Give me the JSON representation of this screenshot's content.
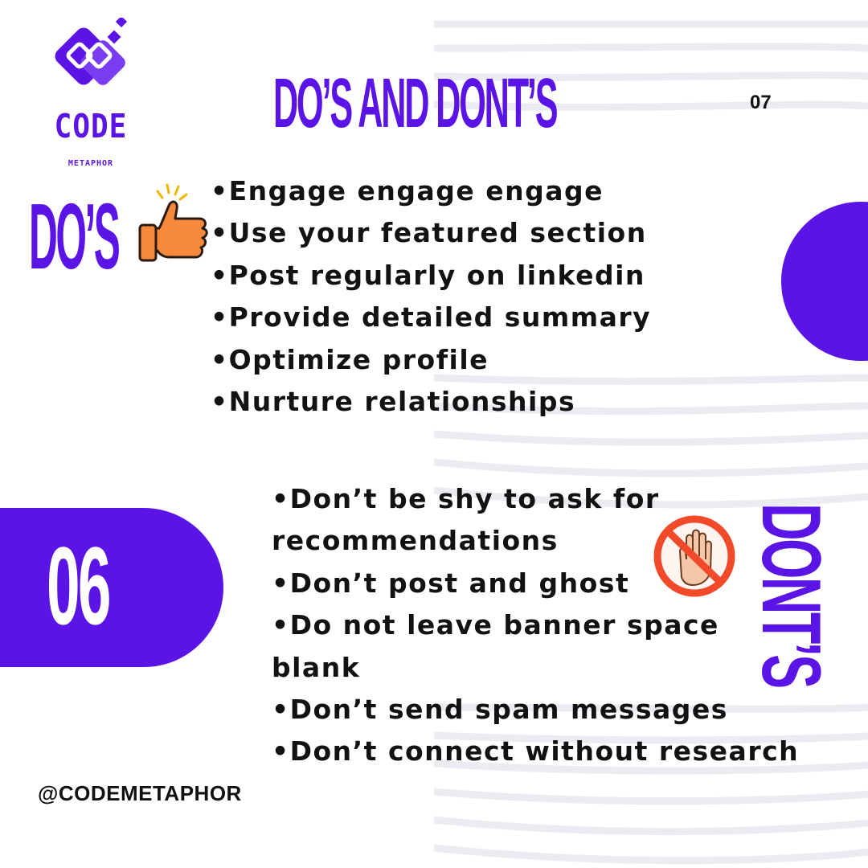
{
  "brand": {
    "word": "CODE",
    "subword": "METAPHOR",
    "color": "#5a14e6"
  },
  "header": {
    "title": "DO’S AND DONT’S",
    "page_number": "07"
  },
  "dos": {
    "label": "DO’S",
    "icon": "thumbs-up-icon",
    "items": [
      "•Engage engage engage",
      "•Use your featured section",
      "•Post regularly on linkedin",
      "•Provide detailed summary",
      "•Optimize profile",
      "•Nurture relationships"
    ]
  },
  "donts": {
    "label": "DONT’S",
    "icon": "stop-hand-icon",
    "items": [
      "•Don’t be shy to ask for recommendations",
      "•Don’t post and ghost",
      "•Do not leave banner space blank",
      "•Don’t send spam messages",
      "•Don’t connect without research"
    ]
  },
  "badge": {
    "number": "06"
  },
  "footer": {
    "handle": "@CODEMETAPHOR"
  },
  "colors": {
    "accent": "#5a14e6",
    "text": "#121212",
    "background": "#ffffff"
  }
}
